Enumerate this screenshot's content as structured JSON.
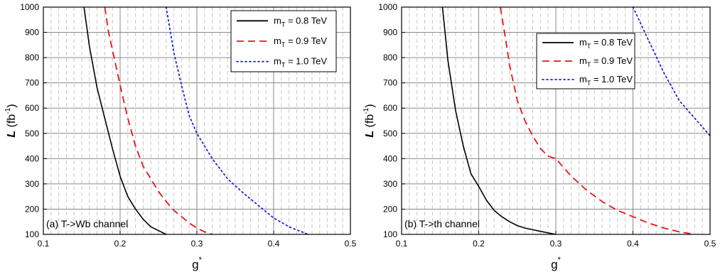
{
  "chart_data": [
    {
      "type": "line",
      "annotation": "(a) T->Wb channel",
      "xlabel": "g",
      "xlabel_sup": "*",
      "ylabel": "L",
      "ylabel_unit_open": " (fb",
      "ylabel_unit_sup": "-1",
      "ylabel_unit_close": ")",
      "xlim": [
        0.1,
        0.5
      ],
      "ylim": [
        100,
        1000
      ],
      "x_ticks": [
        0.1,
        0.2,
        0.3,
        0.4,
        0.5
      ],
      "x_tick_labels": [
        "0.1",
        "0.2",
        "0.3",
        "0.4",
        "0.5"
      ],
      "y_ticks": [
        100,
        200,
        300,
        400,
        500,
        600,
        700,
        800,
        900,
        1000
      ],
      "y_tick_labels": [
        "100",
        "200",
        "300",
        "400",
        "500",
        "600",
        "700",
        "800",
        "900",
        "1000"
      ],
      "grid": true,
      "legend_position": "top-right",
      "series": [
        {
          "name_main": "m",
          "name_sub": "T",
          "name_rest": " = 0.8 TeV",
          "style": "solid",
          "color": "#000000",
          "x": [
            0.153,
            0.16,
            0.17,
            0.18,
            0.19,
            0.2,
            0.21,
            0.22,
            0.23,
            0.24,
            0.25,
            0.26
          ],
          "y": [
            1000,
            845,
            680,
            560,
            440,
            330,
            250,
            200,
            160,
            130,
            115,
            100
          ]
        },
        {
          "name_main": "m",
          "name_sub": "T",
          "name_rest": " = 0.9 TeV",
          "style": "dashed",
          "color": "#e8141c",
          "x": [
            0.18,
            0.185,
            0.19,
            0.2,
            0.21,
            0.22,
            0.23,
            0.24,
            0.25,
            0.26,
            0.27,
            0.28,
            0.29,
            0.3,
            0.31,
            0.32
          ],
          "y": [
            1000,
            900,
            830,
            690,
            560,
            450,
            370,
            320,
            270,
            230,
            195,
            170,
            145,
            125,
            110,
            100
          ]
        },
        {
          "name_main": "m",
          "name_sub": "T",
          "name_rest": " = 1.0 TeV",
          "style": "dotted",
          "color": "#1f23d6",
          "x": [
            0.26,
            0.27,
            0.28,
            0.29,
            0.3,
            0.32,
            0.34,
            0.36,
            0.38,
            0.4,
            0.42,
            0.445
          ],
          "y": [
            1000,
            820,
            690,
            570,
            500,
            400,
            320,
            265,
            215,
            165,
            130,
            100
          ]
        }
      ]
    },
    {
      "type": "line",
      "annotation": "(b) T->th channel",
      "xlabel": "g",
      "xlabel_sup": "*",
      "ylabel": "L",
      "ylabel_unit_open": " (fb",
      "ylabel_unit_sup": "-1",
      "ylabel_unit_close": ")",
      "xlim": [
        0.1,
        0.5
      ],
      "ylim": [
        100,
        1000
      ],
      "x_ticks": [
        0.1,
        0.2,
        0.3,
        0.4,
        0.5
      ],
      "x_tick_labels": [
        "0.1",
        "0.2",
        "0.3",
        "0.4",
        "0.5"
      ],
      "y_ticks": [
        100,
        200,
        300,
        400,
        500,
        600,
        700,
        800,
        900,
        1000
      ],
      "y_tick_labels": [
        "100",
        "200",
        "300",
        "400",
        "500",
        "600",
        "700",
        "800",
        "900",
        "1000"
      ],
      "grid": true,
      "legend_position": "top-right",
      "series": [
        {
          "name_main": "m",
          "name_sub": "T",
          "name_rest": " = 0.8 TeV",
          "style": "solid",
          "color": "#000000",
          "x": [
            0.153,
            0.16,
            0.17,
            0.18,
            0.19,
            0.2,
            0.21,
            0.22,
            0.23,
            0.24,
            0.25,
            0.26,
            0.28,
            0.3
          ],
          "y": [
            1000,
            790,
            590,
            450,
            340,
            290,
            235,
            195,
            170,
            150,
            135,
            125,
            112,
            100
          ]
        },
        {
          "name_main": "m",
          "name_sub": "T",
          "name_rest": " = 0.9 TeV",
          "style": "dashed",
          "color": "#e8141c",
          "x": [
            0.228,
            0.235,
            0.24,
            0.25,
            0.26,
            0.27,
            0.28,
            0.29,
            0.3,
            0.32,
            0.34,
            0.36,
            0.38,
            0.4,
            0.42,
            0.44,
            0.46,
            0.48
          ],
          "y": [
            1000,
            870,
            770,
            630,
            550,
            490,
            440,
            410,
            400,
            330,
            275,
            230,
            195,
            170,
            145,
            125,
            110,
            100
          ]
        },
        {
          "name_main": "m",
          "name_sub": "T",
          "name_rest": " = 1.0 TeV",
          "style": "dotted",
          "color": "#1f23d6",
          "x": [
            0.4,
            0.42,
            0.44,
            0.46,
            0.48,
            0.5
          ],
          "y": [
            1000,
            870,
            740,
            630,
            560,
            490
          ]
        }
      ]
    }
  ]
}
